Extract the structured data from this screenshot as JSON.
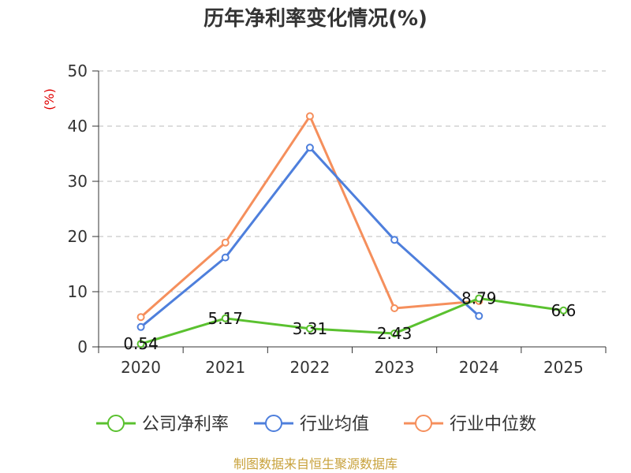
{
  "chart_data": {
    "type": "line",
    "title": "历年净利率变化情况(%)",
    "ylabel": "(%)",
    "categories": [
      "2020",
      "2021",
      "2022",
      "2023",
      "2024",
      "2025"
    ],
    "ylim": [
      0,
      50
    ],
    "yticks": [
      0,
      10,
      20,
      30,
      40,
      50
    ],
    "grid": true,
    "legend_position": "bottom",
    "series": [
      {
        "name": "公司净利率",
        "color": "#5ac12f",
        "values": [
          0.54,
          5.17,
          3.31,
          2.43,
          8.79,
          6.6
        ],
        "labels": [
          "0.54",
          "5.17",
          "3.31",
          "2.43",
          "8.79",
          "6.6"
        ]
      },
      {
        "name": "行业均值",
        "color": "#4e7fdc",
        "values": [
          3.6,
          16.2,
          36.1,
          19.4,
          5.6,
          null
        ]
      },
      {
        "name": "行业中位数",
        "color": "#f58f5c",
        "values": [
          5.4,
          18.9,
          41.8,
          7.0,
          8.3,
          null
        ]
      }
    ],
    "source": "制图数据来自恒生聚源数据库"
  }
}
